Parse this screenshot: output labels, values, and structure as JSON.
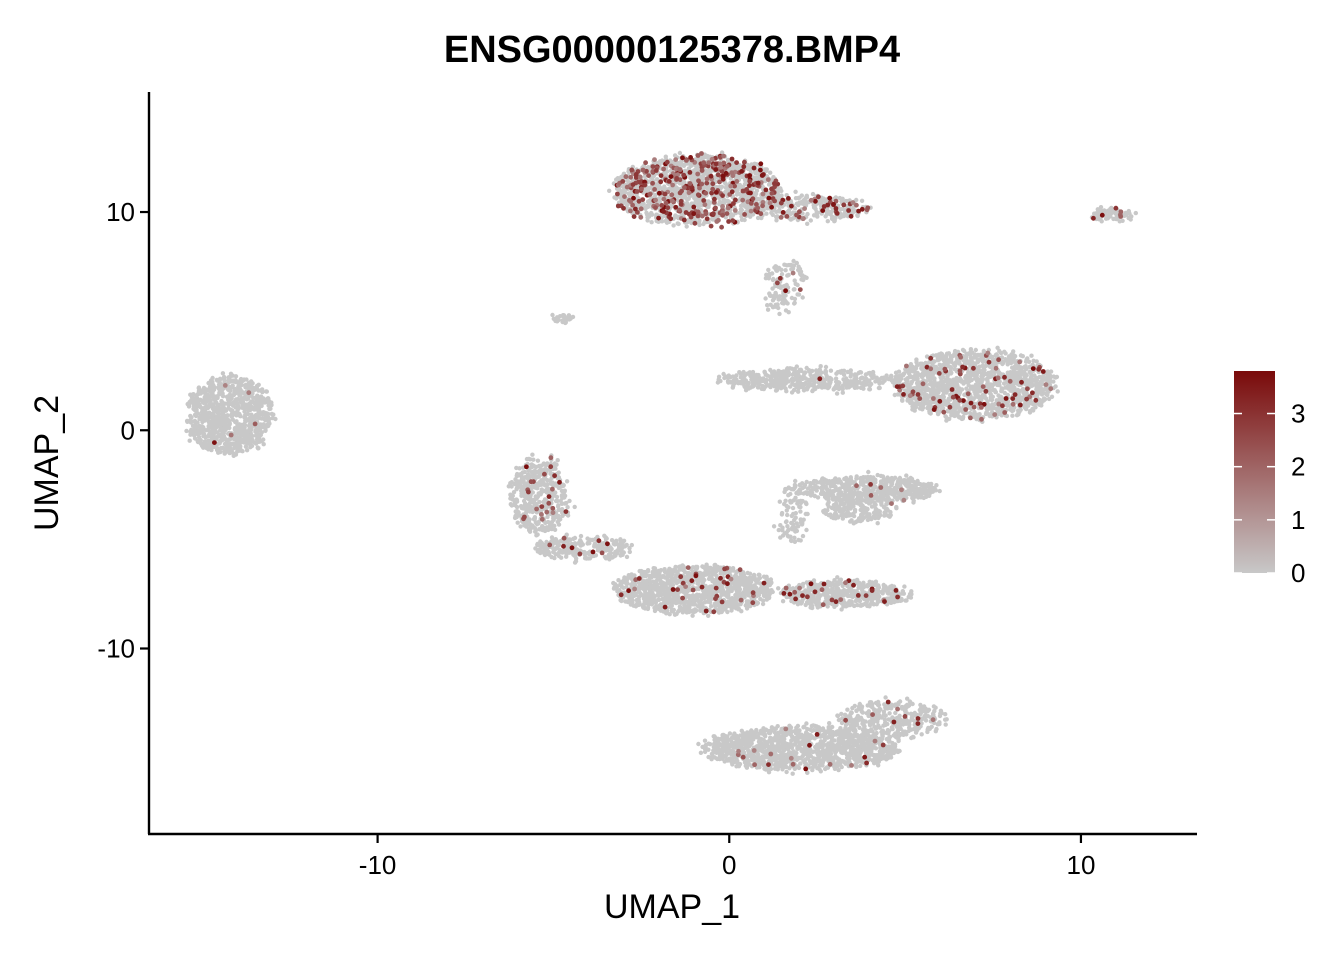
{
  "chart_data": {
    "type": "scatter",
    "title": "ENSG00000125378.BMP4",
    "xlabel": "UMAP_1",
    "ylabel": "UMAP_2",
    "xlim": [
      -16.5,
      13.3
    ],
    "ylim": [
      -18.5,
      15.5
    ],
    "x_ticks": [
      -10,
      0,
      10
    ],
    "y_ticks": [
      -10,
      0,
      10
    ],
    "x_tick_labels": [
      "-10",
      "0",
      "10"
    ],
    "y_tick_labels": [
      "-10",
      "0",
      "10"
    ],
    "grid": false,
    "legend": {
      "placement": "right",
      "type": "colorbar",
      "min": 0,
      "max": 3.8,
      "ticks": [
        0,
        1,
        2,
        3
      ],
      "tick_labels": [
        "0",
        "1",
        "2",
        "3"
      ],
      "low_color": "#c8c8c8",
      "high_color": "#7a0a0a"
    },
    "point_color_low": "#c8c8c8",
    "point_color_high": "#7a0a0a",
    "clusters": [
      {
        "cx": -14.2,
        "cy": 0.7,
        "rx": 1.2,
        "ry": 1.8,
        "n": 900,
        "expr_frac": 0.01
      },
      {
        "cx": -0.9,
        "cy": 11.0,
        "rx": 2.4,
        "ry": 1.6,
        "n": 1500,
        "expr_frac": 0.22
      },
      {
        "cx": 2.2,
        "cy": 10.2,
        "rx": 1.8,
        "ry": 0.6,
        "n": 300,
        "expr_frac": 0.15
      },
      {
        "cx": 7.0,
        "cy": 2.1,
        "rx": 2.3,
        "ry": 1.6,
        "n": 1300,
        "expr_frac": 0.05
      },
      {
        "cx": 2.2,
        "cy": 2.3,
        "rx": 2.5,
        "ry": 0.5,
        "n": 450,
        "expr_frac": 0.01
      },
      {
        "cx": 4.0,
        "cy": -2.7,
        "rx": 1.9,
        "ry": 0.6,
        "n": 500,
        "expr_frac": 0.01
      },
      {
        "cx": 3.7,
        "cy": -3.6,
        "rx": 1.0,
        "ry": 0.6,
        "n": 200,
        "expr_frac": 0.01
      },
      {
        "cx": -5.4,
        "cy": -3.0,
        "rx": 0.8,
        "ry": 1.8,
        "n": 450,
        "expr_frac": 0.06
      },
      {
        "cx": -1.0,
        "cy": -7.3,
        "rx": 2.3,
        "ry": 1.1,
        "n": 1100,
        "expr_frac": 0.04
      },
      {
        "cx": 3.3,
        "cy": -7.5,
        "rx": 1.8,
        "ry": 0.6,
        "n": 500,
        "expr_frac": 0.06
      },
      {
        "cx": -4.2,
        "cy": -5.4,
        "rx": 1.4,
        "ry": 0.5,
        "n": 250,
        "expr_frac": 0.03
      },
      {
        "cx": 2.0,
        "cy": -14.6,
        "rx": 2.8,
        "ry": 1.0,
        "n": 1200,
        "expr_frac": 0.02
      },
      {
        "cx": 4.6,
        "cy": -13.3,
        "rx": 1.5,
        "ry": 0.9,
        "n": 350,
        "expr_frac": 0.03
      },
      {
        "cx": 10.9,
        "cy": 9.9,
        "rx": 0.6,
        "ry": 0.3,
        "n": 80,
        "expr_frac": 0.1
      },
      {
        "cx": -4.8,
        "cy": 5.1,
        "rx": 0.3,
        "ry": 0.15,
        "n": 25,
        "expr_frac": 0.05
      },
      {
        "cx": 1.6,
        "cy": 6.5,
        "rx": 0.6,
        "ry": 1.2,
        "n": 120,
        "expr_frac": 0.05
      },
      {
        "cx": 1.8,
        "cy": -3.8,
        "rx": 0.4,
        "ry": 1.5,
        "n": 100,
        "expr_frac": 0.01
      }
    ]
  }
}
